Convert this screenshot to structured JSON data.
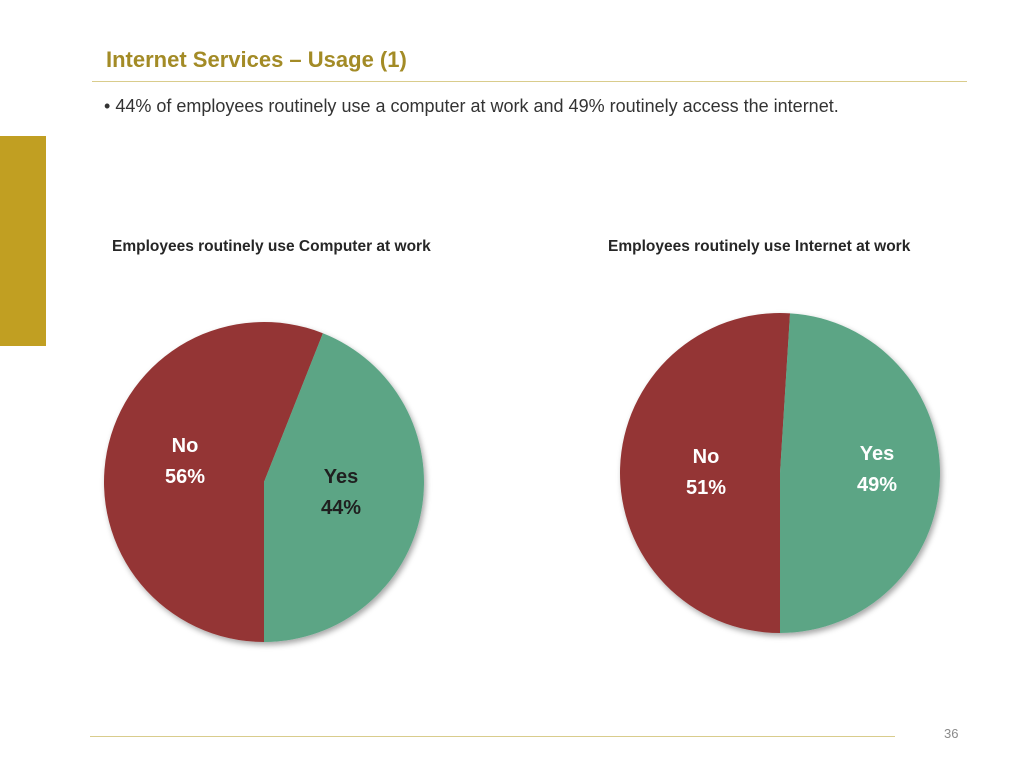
{
  "slide": {
    "title": "Internet Services – Usage (1)",
    "bullet": "44% of employees routinely use a computer at work and 49% routinely access the internet.",
    "page_number": "36"
  },
  "colors": {
    "accent": "#c19f22",
    "title": "#a38b26",
    "no": "#943634",
    "yes": "#5ba585"
  },
  "chart_data": [
    {
      "type": "pie",
      "title": "Employees routinely use Computer at work",
      "slices": [
        {
          "label": "No",
          "value": 56,
          "value_label": "56%"
        },
        {
          "label": "Yes",
          "value": 44,
          "value_label": "44%"
        }
      ]
    },
    {
      "type": "pie",
      "title": "Employees routinely use Internet at work",
      "slices": [
        {
          "label": "No",
          "value": 51,
          "value_label": "51%"
        },
        {
          "label": "Yes",
          "value": 49,
          "value_label": "49%"
        }
      ]
    }
  ]
}
